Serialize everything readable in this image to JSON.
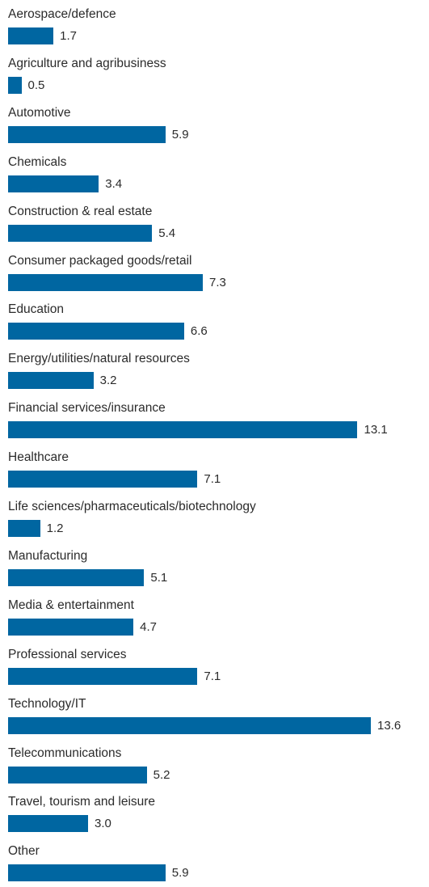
{
  "chart_data": {
    "type": "bar",
    "orientation": "horizontal",
    "bar_color": "#0066a1",
    "categories": [
      "Aerospace/defence",
      "Agriculture and agribusiness",
      "Automotive",
      "Chemicals",
      "Construction & real estate",
      "Consumer packaged goods/retail",
      "Education",
      "Energy/utilities/natural resources",
      "Financial services/insurance",
      "Healthcare",
      "Life sciences/pharmaceuticals/biotechnology",
      "Manufacturing",
      "Media & entertainment",
      "Professional services",
      "Technology/IT",
      "Telecommunications",
      "Travel, tourism and leisure",
      "Other"
    ],
    "values": [
      1.7,
      0.5,
      5.9,
      3.4,
      5.4,
      7.3,
      6.6,
      3.2,
      13.1,
      7.1,
      1.2,
      5.1,
      4.7,
      7.1,
      13.6,
      5.2,
      3.0,
      5.9
    ],
    "value_labels": [
      "1.7",
      "0.5",
      "5.9",
      "3.4",
      "5.4",
      "7.3",
      "6.6",
      "3.2",
      "13.1",
      "7.1",
      "1.2",
      "5.1",
      "4.7",
      "7.1",
      "13.6",
      "5.2",
      "3.0",
      "5.9"
    ],
    "title": "",
    "xlabel": "",
    "ylabel": "",
    "xlim": [
      0,
      13.6
    ],
    "grid": false,
    "legend": "none"
  }
}
